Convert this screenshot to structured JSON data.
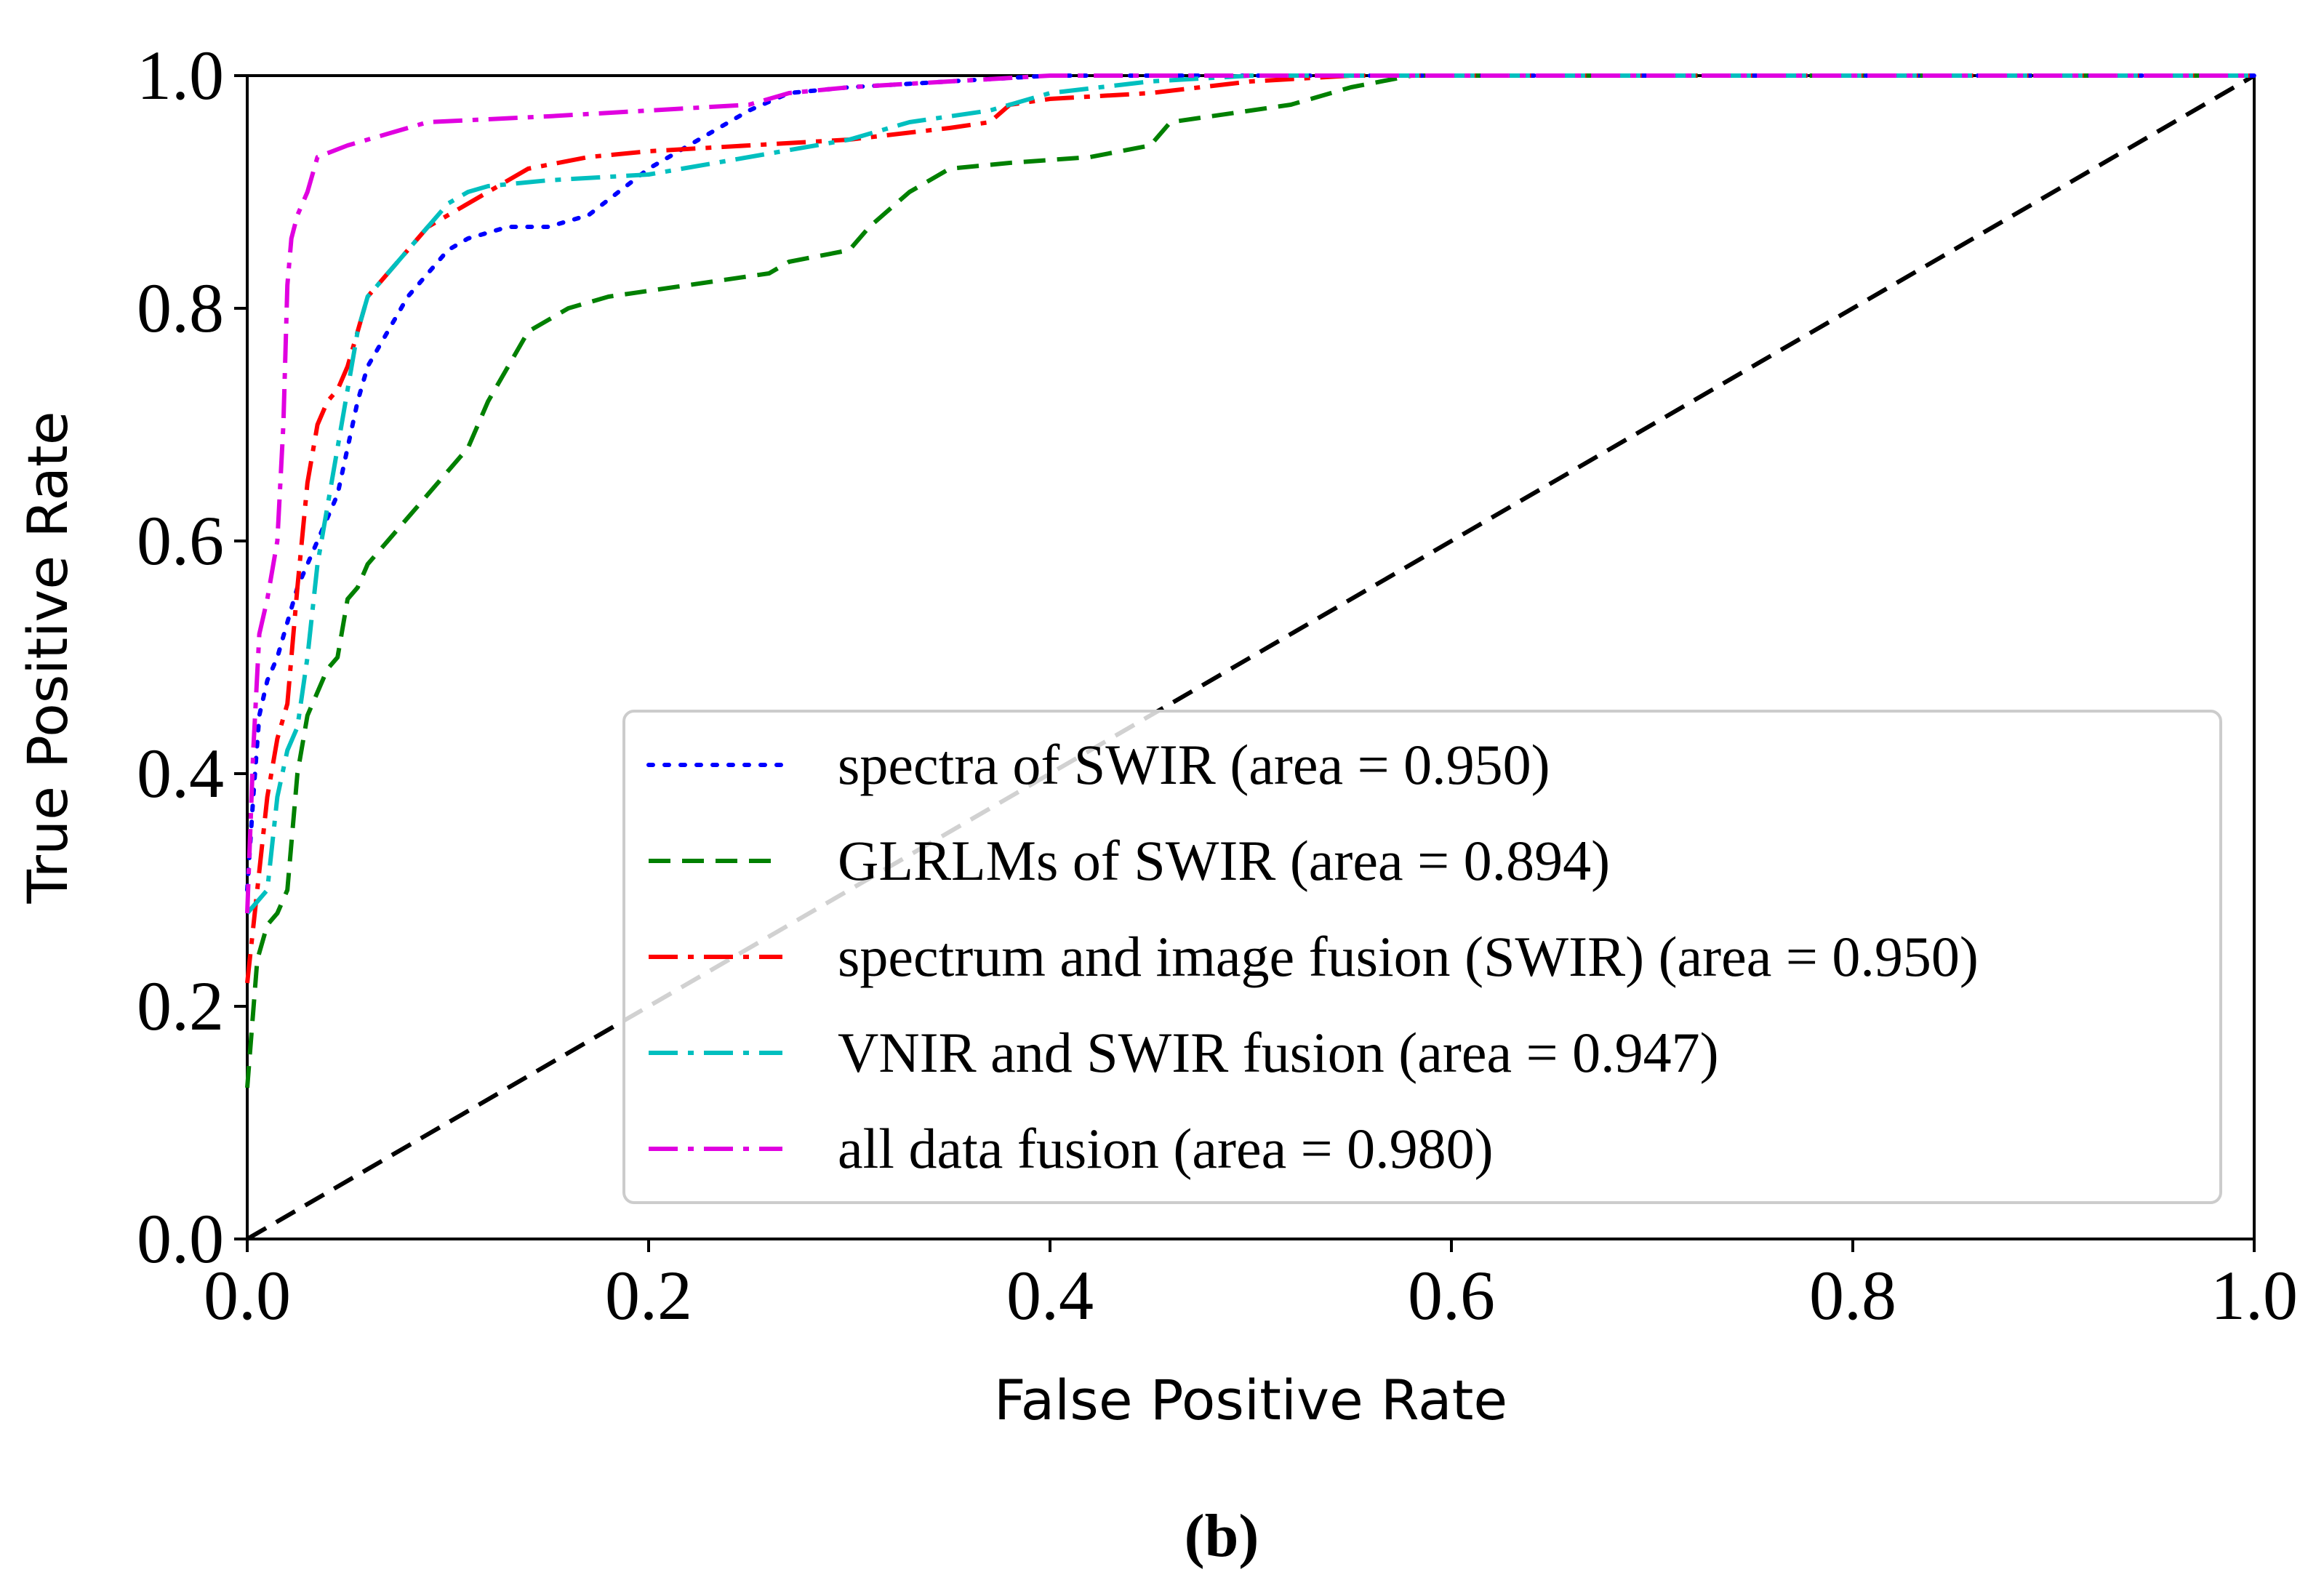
{
  "chart_data": {
    "type": "line",
    "title": "",
    "xlabel": "False Positive Rate",
    "ylabel": "True Positive Rate",
    "xlim": [
      0.0,
      1.0
    ],
    "ylim": [
      0.0,
      1.0
    ],
    "xticks": [
      "0.0",
      "0.2",
      "0.4",
      "0.6",
      "0.8",
      "1.0"
    ],
    "yticks": [
      "0.0",
      "0.2",
      "0.4",
      "0.6",
      "0.8",
      "1.0"
    ],
    "grid": false,
    "legend_position": "bottom-right",
    "panel_label": "(b)",
    "series": [
      {
        "name": "spectra of SWIR (area = 0.950)",
        "color": "#0000ff",
        "style": "dotted",
        "x": [
          0,
          0.003,
          0.006,
          0.01,
          0.015,
          0.02,
          0.025,
          0.03,
          0.035,
          0.04,
          0.045,
          0.05,
          0.055,
          0.06,
          0.07,
          0.08,
          0.09,
          0.1,
          0.11,
          0.13,
          0.15,
          0.17,
          0.2,
          0.25,
          0.27,
          0.3,
          0.35,
          0.4,
          0.45,
          0.5,
          0.55,
          0.6,
          1.0
        ],
        "y": [
          0.3,
          0.38,
          0.45,
          0.48,
          0.5,
          0.53,
          0.56,
          0.58,
          0.6,
          0.62,
          0.64,
          0.68,
          0.72,
          0.75,
          0.78,
          0.81,
          0.83,
          0.85,
          0.86,
          0.87,
          0.87,
          0.88,
          0.92,
          0.97,
          0.985,
          0.99,
          0.995,
          1.0,
          1.0,
          1.0,
          1.0,
          1.0,
          1.0
        ]
      },
      {
        "name": "GLRLMs of SWIR (area = 0.894)",
        "color": "#008000",
        "style": "dashed",
        "x": [
          0,
          0.005,
          0.01,
          0.015,
          0.02,
          0.025,
          0.03,
          0.035,
          0.04,
          0.045,
          0.05,
          0.055,
          0.06,
          0.07,
          0.08,
          0.09,
          0.1,
          0.11,
          0.12,
          0.13,
          0.14,
          0.16,
          0.18,
          0.22,
          0.26,
          0.27,
          0.3,
          0.31,
          0.33,
          0.35,
          0.38,
          0.42,
          0.45,
          0.46,
          0.5,
          0.52,
          0.55,
          0.58,
          0.6,
          1.0
        ],
        "y": [
          0.13,
          0.24,
          0.27,
          0.28,
          0.3,
          0.4,
          0.45,
          0.47,
          0.49,
          0.5,
          0.55,
          0.56,
          0.58,
          0.6,
          0.62,
          0.64,
          0.66,
          0.68,
          0.72,
          0.75,
          0.78,
          0.8,
          0.81,
          0.82,
          0.83,
          0.84,
          0.85,
          0.87,
          0.9,
          0.92,
          0.925,
          0.93,
          0.94,
          0.96,
          0.97,
          0.975,
          0.99,
          1.0,
          1.0,
          1.0
        ]
      },
      {
        "name": "spectrum and image fusion (SWIR) (area = 0.950)",
        "color": "#ff0000",
        "style": "dashdot",
        "x": [
          0,
          0.005,
          0.01,
          0.015,
          0.02,
          0.025,
          0.03,
          0.035,
          0.04,
          0.045,
          0.05,
          0.055,
          0.06,
          0.07,
          0.08,
          0.09,
          0.1,
          0.12,
          0.14,
          0.17,
          0.2,
          0.25,
          0.3,
          0.35,
          0.37,
          0.38,
          0.4,
          0.45,
          0.5,
          0.55,
          0.6,
          1.0
        ],
        "y": [
          0.22,
          0.3,
          0.38,
          0.43,
          0.46,
          0.56,
          0.65,
          0.7,
          0.72,
          0.73,
          0.75,
          0.78,
          0.81,
          0.83,
          0.85,
          0.87,
          0.88,
          0.9,
          0.92,
          0.93,
          0.935,
          0.94,
          0.945,
          0.955,
          0.96,
          0.975,
          0.98,
          0.985,
          0.995,
          1.0,
          1.0,
          1.0
        ]
      },
      {
        "name": "VNIR and SWIR fusion (area = 0.947)",
        "color": "#00bfbf",
        "style": "dashdot",
        "x": [
          0,
          0.005,
          0.01,
          0.015,
          0.02,
          0.025,
          0.03,
          0.035,
          0.04,
          0.045,
          0.05,
          0.055,
          0.06,
          0.07,
          0.08,
          0.09,
          0.1,
          0.11,
          0.12,
          0.15,
          0.2,
          0.25,
          0.3,
          0.33,
          0.37,
          0.4,
          0.45,
          0.5,
          0.55,
          0.6,
          1.0
        ],
        "y": [
          0.28,
          0.29,
          0.3,
          0.38,
          0.42,
          0.44,
          0.5,
          0.58,
          0.63,
          0.68,
          0.73,
          0.78,
          0.81,
          0.83,
          0.85,
          0.87,
          0.89,
          0.9,
          0.905,
          0.91,
          0.915,
          0.93,
          0.945,
          0.96,
          0.97,
          0.985,
          0.995,
          1.0,
          1.0,
          1.0,
          1.0
        ]
      },
      {
        "name": "all data fusion (area = 0.980)",
        "color": "#e000e0",
        "style": "dashdot",
        "x": [
          0,
          0.003,
          0.006,
          0.01,
          0.015,
          0.018,
          0.02,
          0.022,
          0.025,
          0.03,
          0.035,
          0.05,
          0.07,
          0.09,
          0.15,
          0.2,
          0.25,
          0.27,
          0.3,
          0.35,
          0.4,
          0.45,
          0.5,
          1.0
        ],
        "y": [
          0.28,
          0.42,
          0.52,
          0.55,
          0.6,
          0.7,
          0.82,
          0.86,
          0.88,
          0.9,
          0.93,
          0.94,
          0.95,
          0.96,
          0.965,
          0.97,
          0.975,
          0.985,
          0.99,
          0.995,
          1.0,
          1.0,
          1.0,
          1.0
        ]
      },
      {
        "name": "",
        "color": "#000000",
        "style": "dashed",
        "x": [
          0.0,
          1.0
        ],
        "y": [
          0.0,
          1.0
        ]
      }
    ]
  }
}
